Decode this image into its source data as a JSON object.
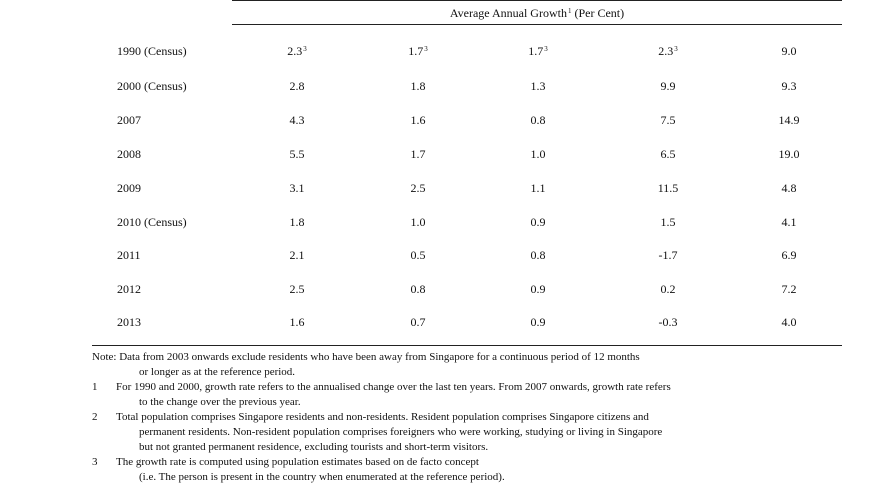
{
  "header": {
    "title_prefix": "Average Annual Growth",
    "title_sup": "1",
    "title_suffix": " (Per Cent)"
  },
  "table": {
    "rows": [
      {
        "label": "1990 (Census)",
        "cells": [
          {
            "v": "2.3",
            "sup": "3"
          },
          {
            "v": "1.7",
            "sup": "3"
          },
          {
            "v": "1.7",
            "sup": "3"
          },
          {
            "v": "2.3",
            "sup": "3"
          },
          {
            "v": "9.0",
            "sup": ""
          }
        ]
      },
      {
        "label": "2000 (Census)",
        "cells": [
          {
            "v": "2.8",
            "sup": ""
          },
          {
            "v": "1.8",
            "sup": ""
          },
          {
            "v": "1.3",
            "sup": ""
          },
          {
            "v": "9.9",
            "sup": ""
          },
          {
            "v": "9.3",
            "sup": ""
          }
        ]
      },
      {
        "label": "2007",
        "cells": [
          {
            "v": "4.3",
            "sup": ""
          },
          {
            "v": "1.6",
            "sup": ""
          },
          {
            "v": "0.8",
            "sup": ""
          },
          {
            "v": "7.5",
            "sup": ""
          },
          {
            "v": "14.9",
            "sup": ""
          }
        ]
      },
      {
        "label": "2008",
        "cells": [
          {
            "v": "5.5",
            "sup": ""
          },
          {
            "v": "1.7",
            "sup": ""
          },
          {
            "v": "1.0",
            "sup": ""
          },
          {
            "v": "6.5",
            "sup": ""
          },
          {
            "v": "19.0",
            "sup": ""
          }
        ]
      },
      {
        "label": "2009",
        "cells": [
          {
            "v": "3.1",
            "sup": ""
          },
          {
            "v": "2.5",
            "sup": ""
          },
          {
            "v": "1.1",
            "sup": ""
          },
          {
            "v": "11.5",
            "sup": ""
          },
          {
            "v": "4.8",
            "sup": ""
          }
        ]
      },
      {
        "label": "2010 (Census)",
        "cells": [
          {
            "v": "1.8",
            "sup": ""
          },
          {
            "v": "1.0",
            "sup": ""
          },
          {
            "v": "0.9",
            "sup": ""
          },
          {
            "v": "1.5",
            "sup": ""
          },
          {
            "v": "4.1",
            "sup": ""
          }
        ]
      },
      {
        "label": "2011",
        "cells": [
          {
            "v": "2.1",
            "sup": ""
          },
          {
            "v": "0.5",
            "sup": ""
          },
          {
            "v": "0.8",
            "sup": ""
          },
          {
            "v": "-1.7",
            "sup": ""
          },
          {
            "v": "6.9",
            "sup": ""
          }
        ]
      },
      {
        "label": "2012",
        "cells": [
          {
            "v": "2.5",
            "sup": ""
          },
          {
            "v": "0.8",
            "sup": ""
          },
          {
            "v": "0.9",
            "sup": ""
          },
          {
            "v": "0.2",
            "sup": ""
          },
          {
            "v": "7.2",
            "sup": ""
          }
        ]
      },
      {
        "label": "2013",
        "cells": [
          {
            "v": "1.6",
            "sup": ""
          },
          {
            "v": "0.7",
            "sup": ""
          },
          {
            "v": "0.9",
            "sup": ""
          },
          {
            "v": "-0.3",
            "sup": ""
          },
          {
            "v": "4.0",
            "sup": ""
          }
        ]
      }
    ]
  },
  "notes": {
    "note_line1": "Note: Data from 2003 onwards exclude residents who have been away from Singapore for a continuous period of 12 months",
    "note_line2": "or longer as at the reference period.",
    "footnotes": [
      {
        "num": "1",
        "lines": [
          "For 1990 and 2000, growth rate refers to the annualised change over the last ten years. From 2007 onwards, growth rate refers",
          "to the change over the previous year."
        ]
      },
      {
        "num": "2",
        "lines": [
          "Total population comprises Singapore residents and non-residents. Resident population comprises Singapore citizens and",
          "permanent residents. Non-resident population comprises foreigners who were working, studying or living in Singapore",
          "but not granted permanent residence, excluding tourists and short-term visitors."
        ]
      },
      {
        "num": "3",
        "lines": [
          "The growth rate is computed using population estimates based on de facto concept",
          "(i.e. The person is present in the country when enumerated at the reference period)."
        ]
      }
    ]
  }
}
